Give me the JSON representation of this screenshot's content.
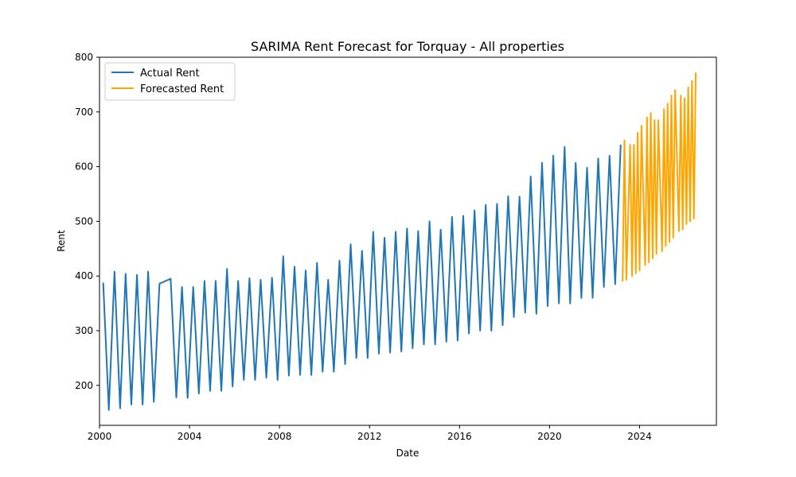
{
  "chart_data": {
    "type": "line",
    "title": "SARIMA Rent Forecast for Torquay - All properties",
    "xlabel": "Date",
    "ylabel": "Rent",
    "x_axis": "date",
    "xlim": [
      "2000-01-01",
      "2027-06-01"
    ],
    "ylim": [
      127,
      800
    ],
    "xticks": [
      "2000",
      "2004",
      "2008",
      "2012",
      "2016",
      "2020",
      "2024"
    ],
    "yticks": [
      200,
      300,
      400,
      500,
      600,
      700,
      800
    ],
    "grid": false,
    "legend": "top-left",
    "series": [
      {
        "name": "Actual Rent",
        "color": "#1f77b4",
        "points": [
          [
            "2000-03-01",
            388
          ],
          [
            "2000-06-01",
            155
          ],
          [
            "2000-09-01",
            408
          ],
          [
            "2000-12-01",
            158
          ],
          [
            "2001-03-01",
            404
          ],
          [
            "2001-06-01",
            165
          ],
          [
            "2001-09-01",
            402
          ],
          [
            "2001-12-01",
            165
          ],
          [
            "2002-03-01",
            408
          ],
          [
            "2002-06-01",
            170
          ],
          [
            "2002-09-01",
            386
          ],
          [
            "2003-03-01",
            395
          ],
          [
            "2003-06-01",
            178
          ],
          [
            "2003-09-01",
            380
          ],
          [
            "2003-12-01",
            177
          ],
          [
            "2004-03-01",
            380
          ],
          [
            "2004-06-01",
            185
          ],
          [
            "2004-09-01",
            391
          ],
          [
            "2004-12-01",
            190
          ],
          [
            "2005-03-01",
            391
          ],
          [
            "2005-06-01",
            190
          ],
          [
            "2005-09-01",
            413
          ],
          [
            "2005-12-01",
            198
          ],
          [
            "2006-03-01",
            391
          ],
          [
            "2006-06-01",
            210
          ],
          [
            "2006-09-01",
            396
          ],
          [
            "2006-12-01",
            210
          ],
          [
            "2007-03-01",
            393
          ],
          [
            "2007-06-01",
            214
          ],
          [
            "2007-09-01",
            397
          ],
          [
            "2007-12-01",
            210
          ],
          [
            "2008-03-01",
            436
          ],
          [
            "2008-06-01",
            218
          ],
          [
            "2008-09-01",
            417
          ],
          [
            "2008-12-01",
            219
          ],
          [
            "2009-03-01",
            410
          ],
          [
            "2009-06-01",
            219
          ],
          [
            "2009-09-01",
            424
          ],
          [
            "2009-12-01",
            225
          ],
          [
            "2010-03-01",
            393
          ],
          [
            "2010-06-01",
            225
          ],
          [
            "2010-09-01",
            428
          ],
          [
            "2010-12-01",
            239
          ],
          [
            "2011-03-01",
            458
          ],
          [
            "2011-06-01",
            250
          ],
          [
            "2011-09-01",
            446
          ],
          [
            "2011-12-01",
            250
          ],
          [
            "2012-03-01",
            481
          ],
          [
            "2012-06-01",
            258
          ],
          [
            "2012-09-01",
            470
          ],
          [
            "2012-12-01",
            260
          ],
          [
            "2013-03-01",
            481
          ],
          [
            "2013-06-01",
            262
          ],
          [
            "2013-09-01",
            487
          ],
          [
            "2013-12-01",
            268
          ],
          [
            "2014-03-01",
            482
          ],
          [
            "2014-06-01",
            275
          ],
          [
            "2014-09-01",
            500
          ],
          [
            "2014-12-01",
            275
          ],
          [
            "2015-03-01",
            485
          ],
          [
            "2015-06-01",
            280
          ],
          [
            "2015-09-01",
            508
          ],
          [
            "2015-12-01",
            282
          ],
          [
            "2016-03-01",
            510
          ],
          [
            "2016-06-01",
            295
          ],
          [
            "2016-09-01",
            520
          ],
          [
            "2016-12-01",
            300
          ],
          [
            "2017-03-01",
            530
          ],
          [
            "2017-06-01",
            300
          ],
          [
            "2017-09-01",
            532
          ],
          [
            "2017-12-01",
            310
          ],
          [
            "2018-03-01",
            546
          ],
          [
            "2018-06-01",
            325
          ],
          [
            "2018-09-01",
            545
          ],
          [
            "2018-12-01",
            333
          ],
          [
            "2019-03-01",
            582
          ],
          [
            "2019-06-01",
            331
          ],
          [
            "2019-09-01",
            607
          ],
          [
            "2019-12-01",
            345
          ],
          [
            "2020-03-01",
            620
          ],
          [
            "2020-06-01",
            350
          ],
          [
            "2020-09-01",
            636
          ],
          [
            "2020-12-01",
            350
          ],
          [
            "2021-03-01",
            607
          ],
          [
            "2021-06-01",
            360
          ],
          [
            "2021-09-01",
            598
          ],
          [
            "2021-12-01",
            360
          ],
          [
            "2022-03-01",
            615
          ],
          [
            "2022-06-01",
            380
          ],
          [
            "2022-09-01",
            620
          ],
          [
            "2022-12-01",
            385
          ],
          [
            "2023-03-01",
            640
          ]
        ]
      },
      {
        "name": "Forecasted Rent",
        "color": "#ffa500",
        "points": [
          [
            "2023-04-01",
            390
          ],
          [
            "2023-05-01",
            648
          ],
          [
            "2023-06-01",
            393
          ],
          [
            "2023-08-01",
            640
          ],
          [
            "2023-09-01",
            400
          ],
          [
            "2023-10-01",
            640
          ],
          [
            "2023-11-01",
            405
          ],
          [
            "2023-12-01",
            662
          ],
          [
            "2024-01-01",
            410
          ],
          [
            "2024-02-01",
            675
          ],
          [
            "2024-04-01",
            420
          ],
          [
            "2024-05-01",
            690
          ],
          [
            "2024-06-01",
            425
          ],
          [
            "2024-07-01",
            698
          ],
          [
            "2024-08-01",
            432
          ],
          [
            "2024-09-01",
            685
          ],
          [
            "2024-10-01",
            440
          ],
          [
            "2024-11-01",
            685
          ],
          [
            "2025-01-01",
            445
          ],
          [
            "2025-02-01",
            705
          ],
          [
            "2025-03-01",
            455
          ],
          [
            "2025-04-01",
            715
          ],
          [
            "2025-05-01",
            462
          ],
          [
            "2025-06-01",
            730
          ],
          [
            "2025-07-01",
            470
          ],
          [
            "2025-08-01",
            740
          ],
          [
            "2025-10-01",
            482
          ],
          [
            "2025-11-01",
            730
          ],
          [
            "2025-12-01",
            485
          ],
          [
            "2026-01-01",
            725
          ],
          [
            "2026-02-01",
            495
          ],
          [
            "2026-03-01",
            745
          ],
          [
            "2026-04-01",
            500
          ],
          [
            "2026-05-01",
            757
          ],
          [
            "2026-06-01",
            505
          ],
          [
            "2026-07-01",
            772
          ]
        ]
      }
    ]
  }
}
